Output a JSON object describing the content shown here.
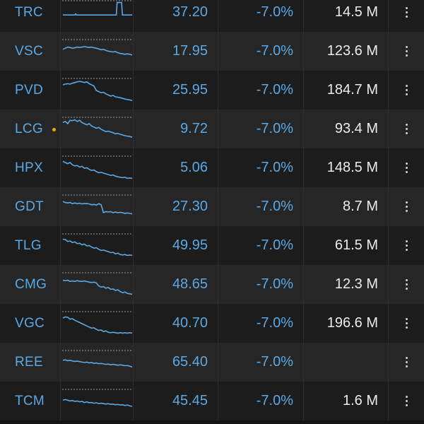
{
  "colors": {
    "accent": "#5aa9e6",
    "volume_text": "#ececec",
    "alert_dot": "#f2a900",
    "row_dark": "#1c1c1c",
    "row_light": "#262626"
  },
  "icons": {
    "row_menu": "more-vert-icon",
    "alert": "alert-dot-icon"
  },
  "rows": [
    {
      "symbol": "TRC",
      "price": "37.20",
      "change": "-7.0%",
      "volume": "14.5 M",
      "alert": false,
      "spark": [
        0.6,
        0.6,
        0.6,
        0.6,
        0.6,
        0.6,
        0.6,
        0.6,
        0.6,
        0.6,
        0.6,
        0.6,
        0.6,
        0.6,
        0.6,
        0.6,
        0.6,
        0.55,
        0.6,
        0.6,
        0.6,
        0.6,
        0.6,
        0.6,
        0.6,
        0.6,
        0.6,
        0.6,
        0.6,
        0.6,
        0.6,
        0.6,
        0.6,
        0.6,
        0.6,
        0.6,
        0.6,
        0.6,
        0.6,
        0.6,
        0.6,
        0.6,
        0.6,
        0.6,
        0.6,
        0.6,
        0.6,
        0.6,
        0.6,
        0.6,
        0.6,
        0.6,
        0.6,
        0.6,
        0.6,
        0.6,
        0.6,
        0.6,
        0.6,
        0.6,
        0.6,
        0.6,
        0.6,
        0.6,
        0.6,
        0.6,
        0.6,
        0.6,
        0.6,
        0.6,
        0.6,
        0.6,
        0.05,
        0.05,
        0.05,
        0.05,
        0.05,
        0.05,
        0.05,
        0.6,
        0.6,
        0.6,
        0.6,
        0.6,
        0.6,
        0.6,
        0.6,
        0.6,
        0.6,
        0.6,
        0.6,
        0.6,
        0.6
      ]
    },
    {
      "symbol": "VSC",
      "price": "17.95",
      "change": "-7.0%",
      "volume": "123.6 M",
      "alert": false,
      "spark": [
        0.4,
        0.35,
        0.3,
        0.32,
        0.35,
        0.33,
        0.3,
        0.32,
        0.3,
        0.28,
        0.3,
        0.32,
        0.3,
        0.33,
        0.35,
        0.38,
        0.42,
        0.4,
        0.45,
        0.48,
        0.5,
        0.52,
        0.5,
        0.55,
        0.58,
        0.6,
        0.62,
        0.6,
        0.62,
        0.65
      ]
    },
    {
      "symbol": "PVD",
      "price": "25.95",
      "change": "-7.0%",
      "volume": "184.7 M",
      "alert": false,
      "spark": [
        0.25,
        0.22,
        0.2,
        0.22,
        0.18,
        0.15,
        0.12,
        0.1,
        0.12,
        0.15,
        0.12,
        0.2,
        0.25,
        0.3,
        0.5,
        0.55,
        0.6,
        0.58,
        0.65,
        0.7,
        0.75,
        0.72,
        0.78,
        0.8,
        0.82,
        0.85,
        0.88,
        0.9,
        0.92,
        0.95
      ]
    },
    {
      "symbol": "LCG",
      "price": "9.72",
      "change": "-7.0%",
      "volume": "93.4 M",
      "alert": true,
      "spark": [
        0.2,
        0.15,
        0.25,
        0.1,
        0.12,
        0.08,
        0.15,
        0.1,
        0.2,
        0.25,
        0.3,
        0.25,
        0.35,
        0.4,
        0.45,
        0.42,
        0.5,
        0.55,
        0.6,
        0.58,
        0.62,
        0.65,
        0.7,
        0.68,
        0.72,
        0.75,
        0.78,
        0.8,
        0.82,
        0.85
      ]
    },
    {
      "symbol": "HPX",
      "price": "5.06",
      "change": "-7.0%",
      "volume": "148.5 M",
      "alert": false,
      "spark": [
        0.2,
        0.25,
        0.3,
        0.25,
        0.35,
        0.4,
        0.38,
        0.45,
        0.42,
        0.5,
        0.48,
        0.55,
        0.6,
        0.58,
        0.65,
        0.7,
        0.68,
        0.72,
        0.75,
        0.78,
        0.82,
        0.8,
        0.85,
        0.88,
        0.9,
        0.92,
        0.9,
        0.95,
        0.93,
        0.95
      ]
    },
    {
      "symbol": "GDT",
      "price": "27.30",
      "change": "-7.0%",
      "volume": "8.7 M",
      "alert": false,
      "spark": [
        0.25,
        0.3,
        0.32,
        0.3,
        0.35,
        0.32,
        0.35,
        0.33,
        0.36,
        0.34,
        0.35,
        0.36,
        0.4,
        0.38,
        0.42,
        0.35,
        0.4,
        0.75,
        0.7,
        0.72,
        0.7,
        0.75,
        0.72,
        0.75,
        0.73,
        0.75,
        0.78,
        0.76,
        0.78,
        0.8
      ]
    },
    {
      "symbol": "TLG",
      "price": "49.95",
      "change": "-7.0%",
      "volume": "61.5 M",
      "alert": false,
      "spark": [
        0.2,
        0.22,
        0.3,
        0.28,
        0.35,
        0.32,
        0.4,
        0.38,
        0.45,
        0.42,
        0.5,
        0.48,
        0.55,
        0.6,
        0.58,
        0.65,
        0.7,
        0.68,
        0.72,
        0.75,
        0.8,
        0.78,
        0.85,
        0.82,
        0.88,
        0.9,
        0.88,
        0.92,
        0.9,
        0.92
      ]
    },
    {
      "symbol": "CMG",
      "price": "48.65",
      "change": "-7.0%",
      "volume": "12.3 M",
      "alert": false,
      "spark": [
        0.3,
        0.32,
        0.3,
        0.35,
        0.33,
        0.35,
        0.32,
        0.34,
        0.35,
        0.33,
        0.36,
        0.38,
        0.4,
        0.38,
        0.42,
        0.55,
        0.6,
        0.58,
        0.65,
        0.62,
        0.7,
        0.68,
        0.75,
        0.72,
        0.8,
        0.85,
        0.82,
        0.88,
        0.9,
        0.92
      ]
    },
    {
      "symbol": "VGC",
      "price": "40.70",
      "change": "-7.0%",
      "volume": "196.6 M",
      "alert": false,
      "spark": [
        0.25,
        0.2,
        0.22,
        0.3,
        0.28,
        0.35,
        0.4,
        0.45,
        0.5,
        0.55,
        0.6,
        0.65,
        0.7,
        0.68,
        0.75,
        0.8,
        0.78,
        0.85,
        0.82,
        0.88,
        0.9,
        0.88,
        0.9,
        0.92,
        0.9,
        0.92,
        0.9,
        0.92,
        0.9,
        0.92
      ]
    },
    {
      "symbol": "REE",
      "price": "65.40",
      "change": "-7.0%",
      "volume": "",
      "alert": false,
      "spark": [
        0.4,
        0.38,
        0.42,
        0.4,
        0.43,
        0.45,
        0.44,
        0.46,
        0.48,
        0.5,
        0.48,
        0.52,
        0.5,
        0.54,
        0.52,
        0.55,
        0.54,
        0.56,
        0.58,
        0.57,
        0.6,
        0.58,
        0.6,
        0.62,
        0.6,
        0.62,
        0.64,
        0.63,
        0.66,
        0.7
      ]
    },
    {
      "symbol": "TCM",
      "price": "45.45",
      "change": "-7.0%",
      "volume": "1.6 M",
      "alert": false,
      "spark": [
        0.45,
        0.42,
        0.45,
        0.48,
        0.46,
        0.5,
        0.48,
        0.52,
        0.5,
        0.55,
        0.52,
        0.56,
        0.55,
        0.58,
        0.56,
        0.6,
        0.58,
        0.6,
        0.62,
        0.6,
        0.63,
        0.62,
        0.65,
        0.63,
        0.66,
        0.65,
        0.68,
        0.66,
        0.7,
        0.72
      ]
    }
  ]
}
